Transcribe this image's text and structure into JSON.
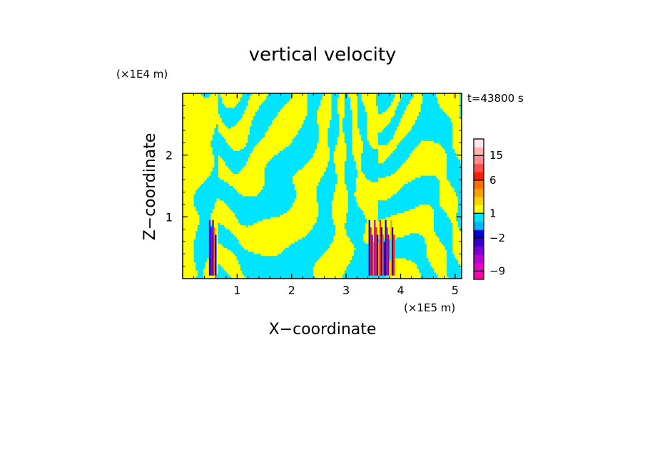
{
  "chart_data": {
    "type": "heatmap",
    "title": "vertical velocity",
    "time_label": "t=43800 s",
    "xlabel": "X−coordinate",
    "ylabel": "Z−coordinate",
    "x_unit": "(×1E5 m)",
    "y_unit": "(×1E4 m)",
    "xlim": [
      0,
      5.12
    ],
    "ylim": [
      0,
      3
    ],
    "x_ticks": [
      1,
      2,
      3,
      4,
      5
    ],
    "x_tick_labels": [
      "1",
      "2",
      "3",
      "4",
      "5"
    ],
    "y_ticks": [
      1,
      2
    ],
    "y_tick_labels": [
      "1",
      "2"
    ],
    "grid": false,
    "dominant_colors": {
      "positive_small": "#ffff00",
      "negative_small": "#00e5ff"
    },
    "colorbar": {
      "orientation": "vertical",
      "placement": "right",
      "levels": [
        -12,
        -9,
        -6,
        -4,
        -3,
        -2,
        -1,
        0,
        1,
        2,
        3,
        4,
        6,
        9,
        12,
        15,
        18,
        22
      ],
      "colors": [
        "#ff00a8",
        "#e600c8",
        "#b400d2",
        "#7800d2",
        "#3200c8",
        "#0000d2",
        "#00b4ff",
        "#00e5ff",
        "#ffff00",
        "#ffd200",
        "#ffa000",
        "#ff6e00",
        "#ff1e00",
        "#ff5050",
        "#ff8c8c",
        "#ffb4b4",
        "#ffe6e6"
      ],
      "tick_values": [
        -9,
        -2,
        1,
        6,
        15
      ],
      "tick_labels": [
        "−9",
        "−2",
        "1",
        "6",
        "15"
      ]
    }
  }
}
